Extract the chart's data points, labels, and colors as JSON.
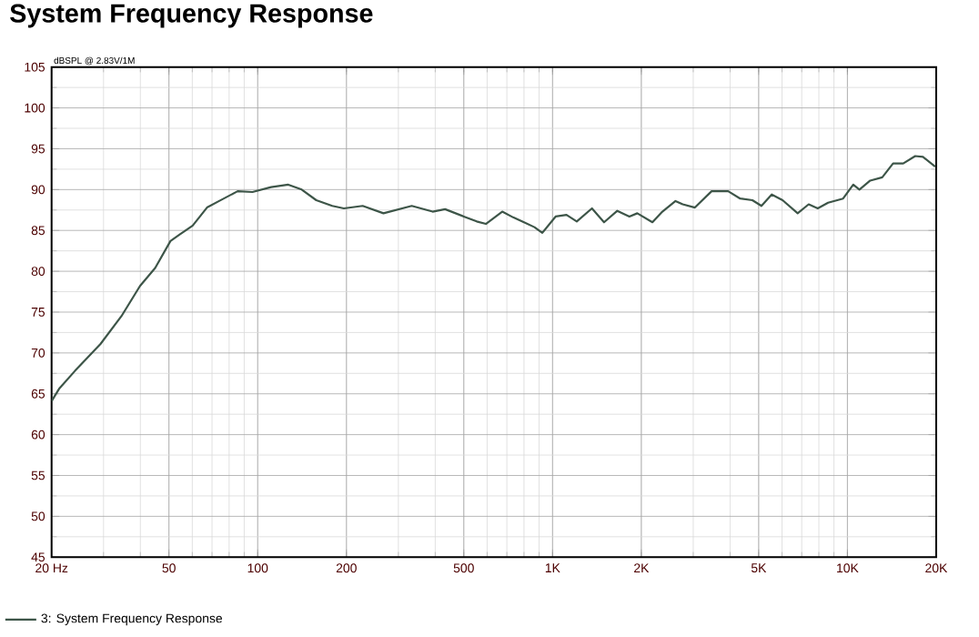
{
  "chart_data": {
    "type": "line",
    "title": "System Frequency Response",
    "ylabel": "dBSPL @ 2.83V/1M",
    "xlim": [
      20,
      20000
    ],
    "ylim": [
      45,
      105
    ],
    "log": "x",
    "grid": true,
    "legend": "bottom",
    "line_style": "solid",
    "marker": "none",
    "xticks": [
      {
        "value": 20,
        "label": "20 Hz"
      },
      50,
      100,
      200,
      500,
      {
        "value": 1000,
        "label": "1K"
      },
      {
        "value": 2000,
        "label": "2K"
      },
      {
        "value": 5000,
        "label": "5K"
      },
      {
        "value": 10000,
        "label": "10K"
      },
      {
        "value": 20000,
        "label": "20K"
      }
    ],
    "yticks": [
      45,
      50,
      55,
      60,
      65,
      70,
      75,
      80,
      85,
      90,
      95,
      100,
      105
    ],
    "series": [
      {
        "name": "3: System Frequency Response",
        "color": "#3d5548",
        "x": [
          20,
          21.2,
          24,
          29.3,
          34.5,
          39.9,
          44.9,
          50.6,
          54.4,
          60.2,
          67.3,
          74,
          85.5,
          96,
          111,
          127,
          141,
          158,
          179,
          196,
          227,
          267,
          333,
          392,
          432,
          500,
          553,
          594,
          675,
          735,
          800,
          868,
          923,
          1024,
          1115,
          1208,
          1360,
          1495,
          1658,
          1822,
          1938,
          2181,
          2342,
          2612,
          2763,
          3039,
          3463,
          3941,
          4328,
          4760,
          5110,
          5537,
          6027,
          6780,
          7389,
          7931,
          8598,
          9668,
          10466,
          10982,
          11946,
          13124,
          14280,
          15460,
          16980,
          18040,
          19850
        ],
        "values": [
          64.1,
          65.6,
          67.8,
          71.1,
          74.5,
          78.2,
          80.4,
          83.7,
          84.5,
          85.6,
          87.8,
          88.6,
          89.8,
          89.7,
          90.3,
          90.6,
          90.0,
          88.7,
          88.0,
          87.7,
          88.0,
          87.1,
          88.0,
          87.3,
          87.6,
          86.7,
          86.1,
          85.8,
          87.3,
          86.6,
          86.0,
          85.4,
          84.7,
          86.7,
          86.9,
          86.1,
          87.7,
          86.0,
          87.4,
          86.7,
          87.1,
          86.0,
          87.2,
          88.6,
          88.2,
          87.8,
          89.8,
          89.8,
          88.9,
          88.7,
          88.0,
          89.4,
          88.7,
          87.1,
          88.2,
          87.7,
          88.4,
          88.9,
          90.6,
          90.0,
          91.1,
          91.5,
          93.2,
          93.2,
          94.1,
          94.0,
          92.8
        ]
      }
    ]
  }
}
